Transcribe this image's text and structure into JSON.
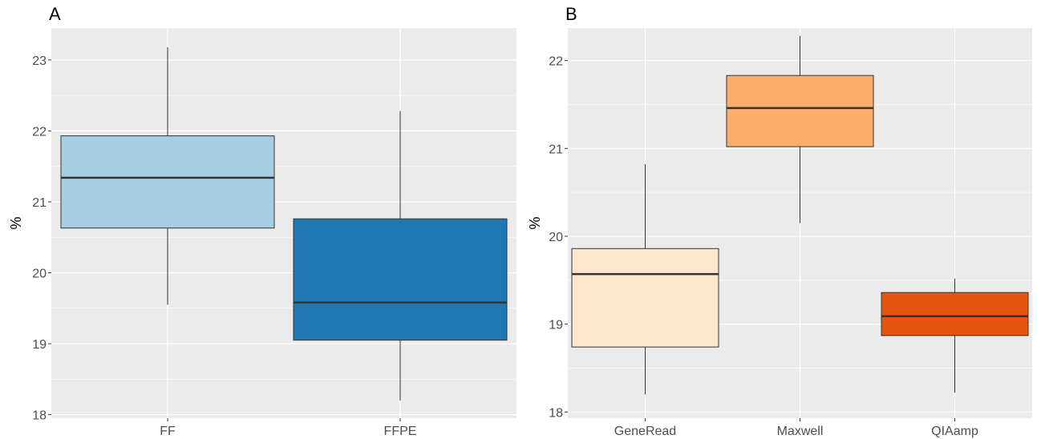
{
  "chart_data": [
    {
      "type": "box",
      "panel_label": "A",
      "ylabel": "%",
      "ylim": [
        17.95,
        23.45
      ],
      "yticks": [
        "18",
        "19",
        "20",
        "21",
        "22",
        "23"
      ],
      "categories": [
        "FF",
        "FFPE"
      ],
      "boxes": [
        {
          "label": "FF",
          "whisker_low": 19.55,
          "q1": 20.63,
          "median": 21.34,
          "q3": 21.93,
          "whisker_high": 23.18,
          "color": "#a6cee3"
        },
        {
          "label": "FFPE",
          "whisker_low": 18.2,
          "q1": 19.05,
          "median": 19.58,
          "q3": 20.76,
          "whisker_high": 22.28,
          "color": "#1f78b4"
        }
      ],
      "grid": true,
      "background": "#ebebeb"
    },
    {
      "type": "box",
      "panel_label": "B",
      "ylabel": "%",
      "ylim": [
        17.93,
        22.37
      ],
      "yticks": [
        "18",
        "19",
        "20",
        "21",
        "22"
      ],
      "categories": [
        "GeneRead",
        "Maxwell",
        "QIAamp"
      ],
      "boxes": [
        {
          "label": "GeneRead",
          "whisker_low": 18.2,
          "q1": 18.74,
          "median": 19.57,
          "q3": 19.86,
          "whisker_high": 20.82,
          "color": "#fee6ce"
        },
        {
          "label": "Maxwell",
          "whisker_low": 20.15,
          "q1": 21.02,
          "median": 21.46,
          "q3": 21.83,
          "whisker_high": 22.28,
          "color": "#fdae6b"
        },
        {
          "label": "QIAamp",
          "whisker_low": 18.22,
          "q1": 18.87,
          "median": 19.09,
          "q3": 19.36,
          "whisker_high": 19.52,
          "color": "#e6550d"
        }
      ],
      "grid": true,
      "background": "#ebebeb"
    }
  ]
}
